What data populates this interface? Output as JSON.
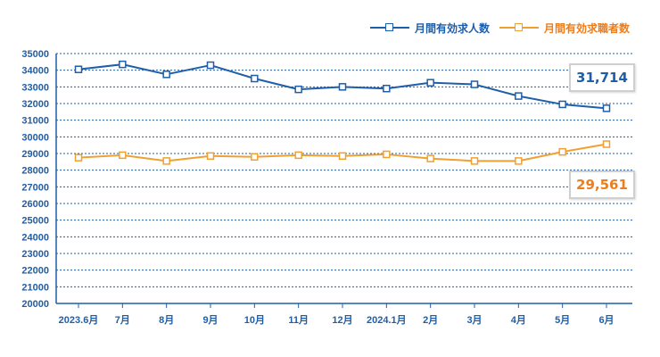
{
  "chart_data": {
    "type": "line",
    "categories": [
      "2023.6月",
      "7月",
      "8月",
      "9月",
      "10月",
      "11月",
      "12月",
      "2024.1月",
      "2月",
      "3月",
      "4月",
      "5月",
      "6月"
    ],
    "series": [
      {
        "name": "月間有効求人数",
        "color": "#1f5ea8",
        "values": [
          34050,
          34350,
          33750,
          34300,
          33500,
          32850,
          33000,
          32900,
          33250,
          33150,
          32450,
          31950,
          31714
        ]
      },
      {
        "name": "月間有効求職者数",
        "color": "#f0a030",
        "values": [
          28750,
          28900,
          28550,
          28850,
          28800,
          28900,
          28850,
          28950,
          28700,
          28550,
          28550,
          29100,
          29561
        ]
      }
    ],
    "ylim": [
      20000,
      35000
    ],
    "ytick_step": 1000,
    "grid": true,
    "legend": "top-right",
    "callouts": [
      {
        "series": "月間有効求人数",
        "text": "31,714",
        "color": "#1f5ea8"
      },
      {
        "series": "月間有効求職者数",
        "text": "29,561",
        "color": "#ee7d1c"
      }
    ]
  }
}
